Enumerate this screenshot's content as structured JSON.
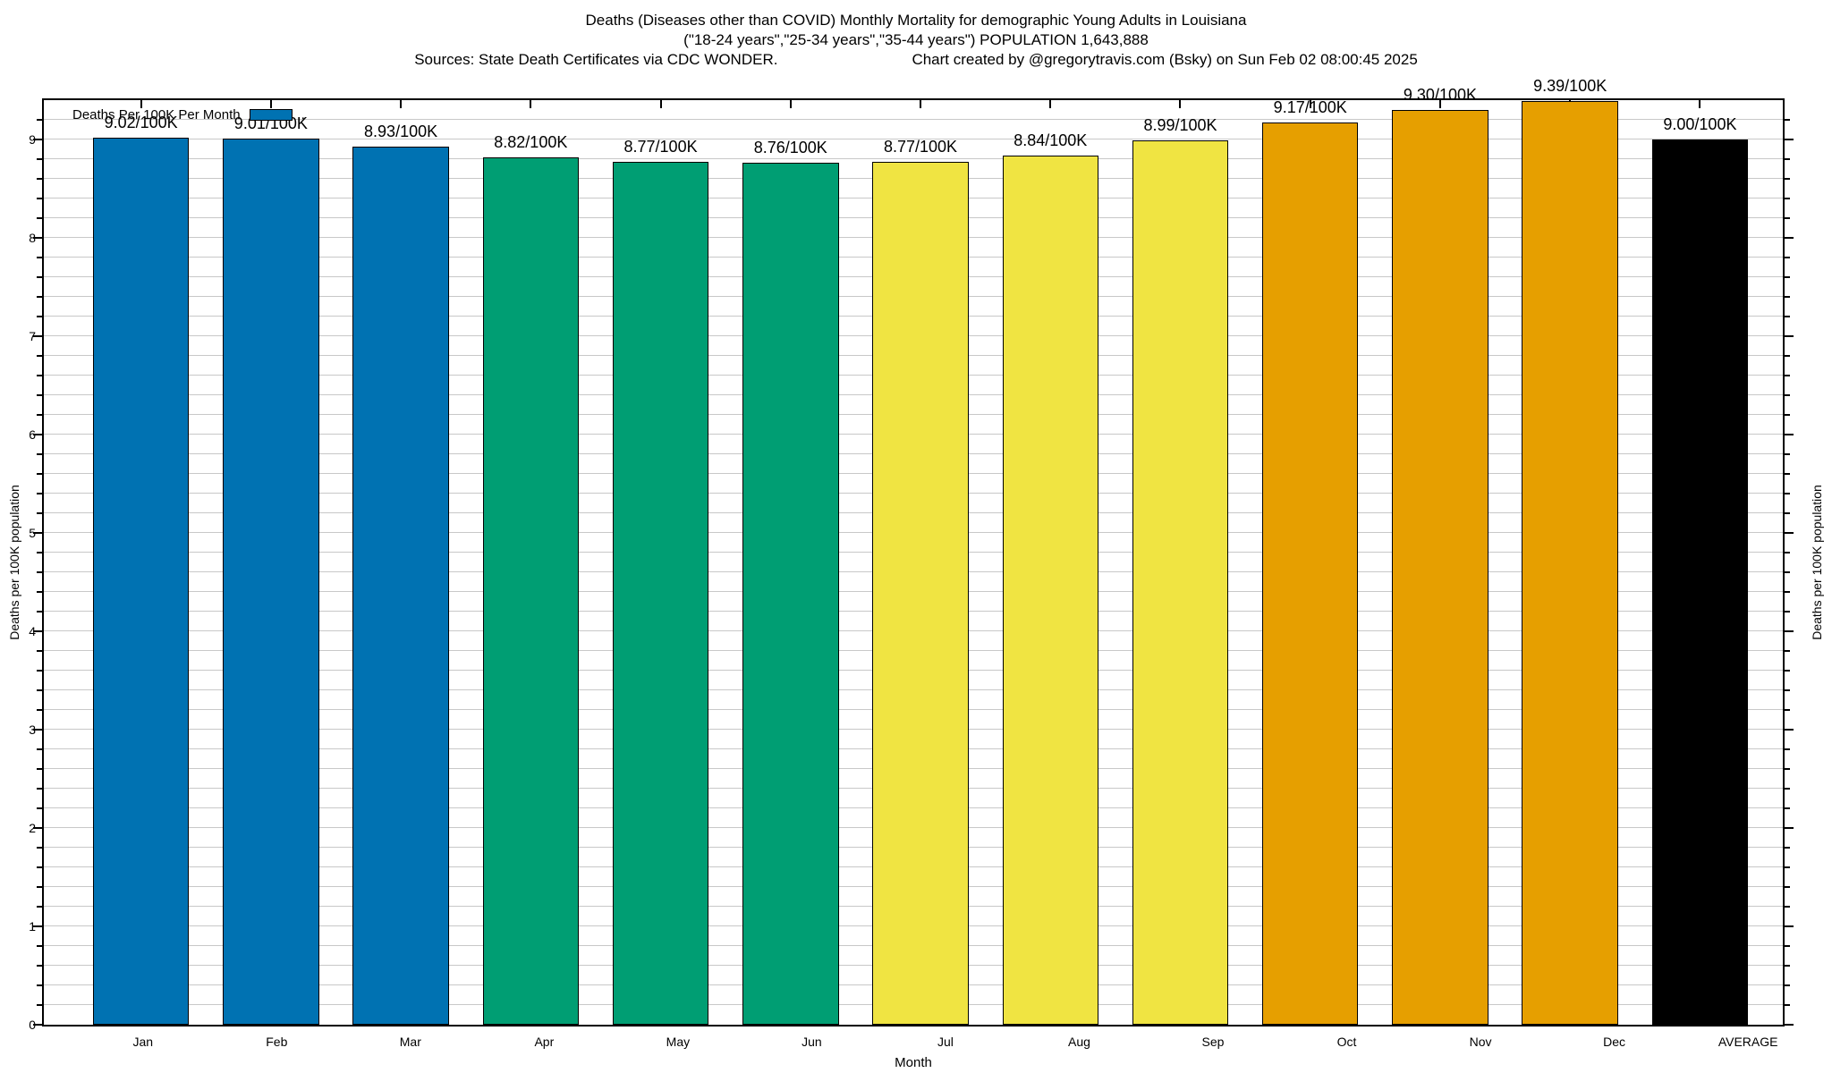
{
  "header": {
    "line1": "Deaths (Diseases other than COVID) Monthly Mortality for demographic Young Adults in Louisiana",
    "line2": "(\"18-24 years\",\"25-34 years\",\"35-44 years\") POPULATION 1,643,888",
    "line3_left": "Sources: State Death Certificates via CDC WONDER.",
    "line3_right": "Chart created by @gregorytravis.com (Bsky) on Sun Feb 02 08:00:45 2025"
  },
  "legend": {
    "label": "Deaths Per 100K Per Month",
    "suffix": ",",
    "swatch_color": "#0072B2"
  },
  "chart_data": {
    "type": "bar",
    "title": "Deaths (Diseases other than COVID) Monthly Mortality for demographic Young Adults in Louisiana",
    "categories": [
      "Jan",
      "Feb",
      "Mar",
      "Apr",
      "May",
      "Jun",
      "Jul",
      "Aug",
      "Sep",
      "Oct",
      "Nov",
      "Dec",
      "AVERAGE"
    ],
    "values": [
      9.02,
      9.01,
      8.93,
      8.82,
      8.77,
      8.76,
      8.77,
      8.84,
      8.99,
      9.17,
      9.3,
      9.39,
      9.0
    ],
    "bar_labels": [
      "9.02/100K",
      "9.01/100K",
      "8.93/100K",
      "8.82/100K",
      "8.77/100K",
      "8.76/100K",
      "8.77/100K",
      "8.84/100K",
      "8.99/100K",
      "9.17/100K",
      "9.30/100K",
      "9.39/100K",
      "9.00/100K"
    ],
    "bar_colors": [
      "#0072B2",
      "#0072B2",
      "#0072B2",
      "#009E73",
      "#009E73",
      "#009E73",
      "#F0E442",
      "#F0E442",
      "#F0E442",
      "#E69F00",
      "#E69F00",
      "#E69F00",
      "#000000"
    ],
    "series": [
      {
        "name": "Deaths Per 100K Per Month",
        "color": "#0072B2"
      }
    ],
    "xlabel": "Month",
    "ylabel_left": "Deaths per 100K population",
    "ylabel_right": "Deaths per 100K population",
    "ylim": [
      0,
      9.4
    ],
    "ytick_major_step": 1,
    "ytick_minor_step": 0.2,
    "ytick_labels": [
      "0",
      "1",
      "2",
      "3",
      "4",
      "5",
      "6",
      "7",
      "8",
      "9"
    ],
    "grid": true,
    "grid_color": "#c8c8c8",
    "legend_position": "top-left"
  }
}
